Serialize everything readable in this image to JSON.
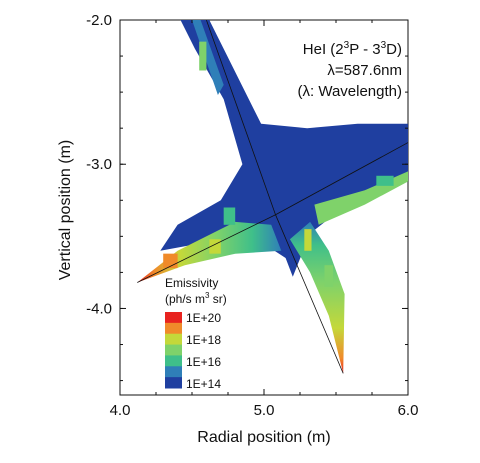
{
  "chart_data": {
    "type": "heatmap",
    "title": "",
    "xlabel": "Radial position (m)",
    "ylabel": "Vertical position (m)",
    "xlim": [
      4.0,
      6.0
    ],
    "ylim": [
      -4.6,
      -2.0
    ],
    "x_ticks": [
      4.0,
      5.0,
      6.0
    ],
    "x_tick_labels": [
      "4.0",
      "5.0",
      "6.0"
    ],
    "y_ticks": [
      -2.0,
      -3.0,
      -4.0
    ],
    "y_tick_labels": [
      "-2.0",
      "-3.0",
      "-4.0"
    ],
    "grid": false,
    "annotations": {
      "species": "HeI (2",
      "sup1": "3",
      "mid": "P - 3",
      "sup2": "3",
      "tail": "D)",
      "wavelength": "λ=587.6nm",
      "note": "(λ: Wavelength)"
    },
    "colorbar": {
      "title_line1": "Emissivity",
      "title_line2_pre": "(ph/s m",
      "title_line2_sup": "3",
      "title_line2_post": " sr)",
      "labels": [
        "1E+20",
        "1E+18",
        "1E+16",
        "1E+14"
      ],
      "colors": [
        "#e8231f",
        "#f08a2a",
        "#c4d83a",
        "#7fd26a",
        "#3fbf8a",
        "#2f7fb8",
        "#1f3fa0"
      ],
      "placement": "lower-left"
    },
    "legs": [
      {
        "name": "",
        "tip": [
          4.12,
          -3.82
        ],
        "base_a": [
          4.85,
          -3.35
        ],
        "base_b": [
          5.15,
          -3.55
        ]
      },
      {
        "name": "",
        "tip": [
          5.55,
          -4.45
        ],
        "base_a": [
          5.1,
          -3.38
        ],
        "base_b": [
          5.35,
          -3.28
        ]
      },
      {
        "name": "",
        "tip": [
          4.45,
          -2.0
        ],
        "base_a": [
          4.65,
          -2.0
        ],
        "base_b": [
          4.95,
          -3.0
        ]
      },
      {
        "name": "",
        "tip": [
          6.0,
          -2.75
        ],
        "base_a": [
          6.0,
          -3.05
        ],
        "base_b": [
          5.2,
          -3.0
        ]
      }
    ],
    "separatrix_lines": [
      [
        [
          4.6,
          -2.0
        ],
        [
          5.08,
          -3.35
        ]
      ],
      [
        [
          5.08,
          -3.35
        ],
        [
          6.0,
          -2.85
        ]
      ],
      [
        [
          5.08,
          -3.35
        ],
        [
          4.12,
          -3.82
        ]
      ],
      [
        [
          5.08,
          -3.35
        ],
        [
          5.55,
          -4.45
        ]
      ]
    ]
  }
}
